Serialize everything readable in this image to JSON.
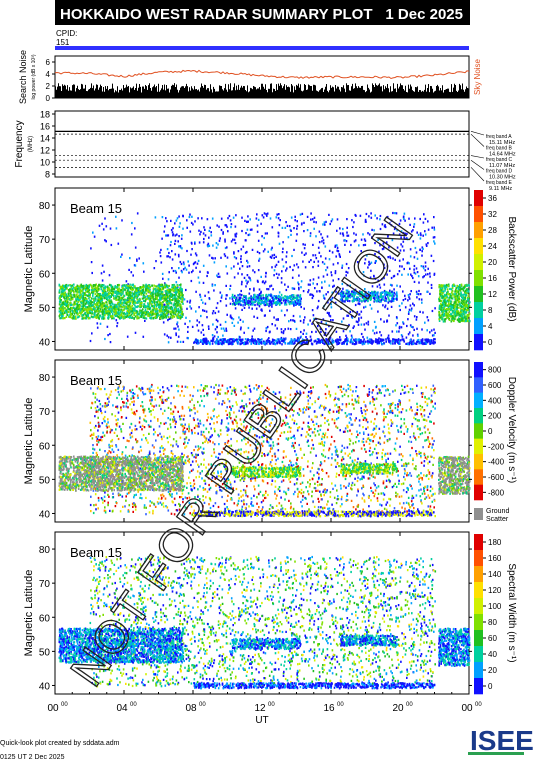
{
  "header": {
    "title": "HOKKAIDO WEST RADAR SUMMARY PLOT",
    "date": "1 Dec 2025",
    "cpid_label": "CPID:",
    "cpid_value": "151"
  },
  "noise_panel": {
    "ylabel_main": "Search Noise",
    "ylabel_sub": "log power (dB x 10³)",
    "legend": "Sky Noise",
    "ticks": [
      "0",
      "2",
      "4",
      "6"
    ],
    "sky_noise_color": "#e05020",
    "search_noise_color": "#000000"
  },
  "freq_panel": {
    "ylabel_main": "Frequency",
    "ylabel_sub": "(MHz)",
    "ticks": [
      "8",
      "10",
      "12",
      "14",
      "16",
      "18"
    ],
    "bands": [
      {
        "label": "freq band A",
        "value": "15.11 MHz"
      },
      {
        "label": "freq band B",
        "value": "14.64 MHz"
      },
      {
        "label": "freq band C",
        "value": "11.07 MHz"
      },
      {
        "label": "freq band D",
        "value": "10.30 MHz"
      },
      {
        "label": "freq band E",
        "value": "9.11 MHz"
      }
    ]
  },
  "panels": [
    {
      "beam": "Beam 15",
      "ylabel": "Magnetic Latitude",
      "yticks": [
        "40",
        "50",
        "60",
        "70",
        "80"
      ],
      "cbar_label": "Backscatter Power (dB)",
      "cbar_ticks": [
        "0",
        "4",
        "8",
        "12",
        "16",
        "20",
        "24",
        "28",
        "32",
        "36"
      ],
      "colors": [
        "#1010ff",
        "#00a0ff",
        "#00d0a0",
        "#20c020",
        "#80e000",
        "#d0f000",
        "#ffe000",
        "#ffa000",
        "#ff5000",
        "#e00000"
      ]
    },
    {
      "beam": "Beam 15",
      "ylabel": "Magnetic Latitude",
      "yticks": [
        "40",
        "50",
        "60",
        "70",
        "80"
      ],
      "cbar_label": "Doppler Velocity (m s⁻¹)",
      "cbar_ticks": [
        "800",
        "600",
        "400",
        "200",
        "0",
        "-200",
        "-400",
        "-600",
        "-800"
      ],
      "ground_scatter": "Ground Scatter",
      "colors": [
        "#1010ff",
        "#3060ff",
        "#00b0ff",
        "#00d080",
        "#60d000",
        "#e0f000",
        "#ffc000",
        "#ff7000",
        "#e00000"
      ]
    },
    {
      "beam": "Beam 15",
      "ylabel": "Magnetic Latitude",
      "yticks": [
        "40",
        "50",
        "60",
        "70",
        "80"
      ],
      "cbar_label": "Spectral Width (m s⁻¹)",
      "cbar_ticks": [
        "0",
        "20",
        "40",
        "60",
        "80",
        "100",
        "120",
        "140",
        "160",
        "180"
      ],
      "colors": [
        "#1010ff",
        "#00a0ff",
        "#00d0a0",
        "#20c020",
        "#80e000",
        "#d0f000",
        "#ffe000",
        "#ffa000",
        "#ff5000",
        "#e00000"
      ]
    }
  ],
  "xaxis": {
    "label": "UT",
    "ticks": [
      "00",
      "04",
      "08",
      "12",
      "16",
      "20",
      "00"
    ],
    "tick_sup": "00"
  },
  "footer": {
    "credit": "Quick-look plot created by sddata.adm",
    "timestamp": "0125 UT  2 Dec 2025",
    "logo": "ISEE"
  },
  "watermark": "NOT FOR PUBLICATION",
  "chart_data": [
    {
      "type": "line",
      "title": "Search Noise",
      "series": [
        {
          "name": "Sky Noise",
          "x": [
            0,
            2,
            4,
            6,
            8,
            10,
            12,
            14,
            16,
            18,
            20,
            22,
            24
          ],
          "values": [
            4.2,
            4.1,
            3.6,
            4.3,
            4.5,
            4.2,
            3.7,
            3.4,
            3.5,
            3.5,
            3.4,
            3.8,
            4.4
          ]
        }
      ],
      "ylim": [
        0,
        7
      ]
    },
    {
      "type": "line",
      "title": "Frequency",
      "ylabel": "(MHz)",
      "ylim": [
        8,
        18
      ],
      "bands_mhz": [
        15.11,
        14.64,
        11.07,
        10.3,
        9.11
      ]
    },
    {
      "type": "heatmap",
      "title": "Beam 15 Backscatter Power",
      "x_range_ut": [
        0,
        24
      ],
      "ylim": [
        38,
        84
      ],
      "regions": [
        {
          "t0": 0.2,
          "t1": 7.4,
          "lat0": 47,
          "lat1": 57,
          "level": "high"
        },
        {
          "t0": 10.2,
          "t1": 14.2,
          "lat0": 51,
          "lat1": 54,
          "level": "medium"
        },
        {
          "t0": 16.5,
          "t1": 19.8,
          "lat0": 52,
          "lat1": 55,
          "level": "medium"
        },
        {
          "t0": 22.2,
          "t1": 24,
          "lat0": 46,
          "lat1": 57,
          "level": "high"
        },
        {
          "t0": 8,
          "t1": 22,
          "lat0": 39.5,
          "lat1": 41,
          "level": "low"
        }
      ]
    },
    {
      "type": "heatmap",
      "title": "Beam 15 Doppler Velocity",
      "x_range_ut": [
        0,
        24
      ],
      "ylim": [
        38,
        84
      ]
    },
    {
      "type": "heatmap",
      "title": "Beam 15 Spectral Width",
      "x_range_ut": [
        0,
        24
      ],
      "ylim": [
        38,
        84
      ]
    }
  ]
}
